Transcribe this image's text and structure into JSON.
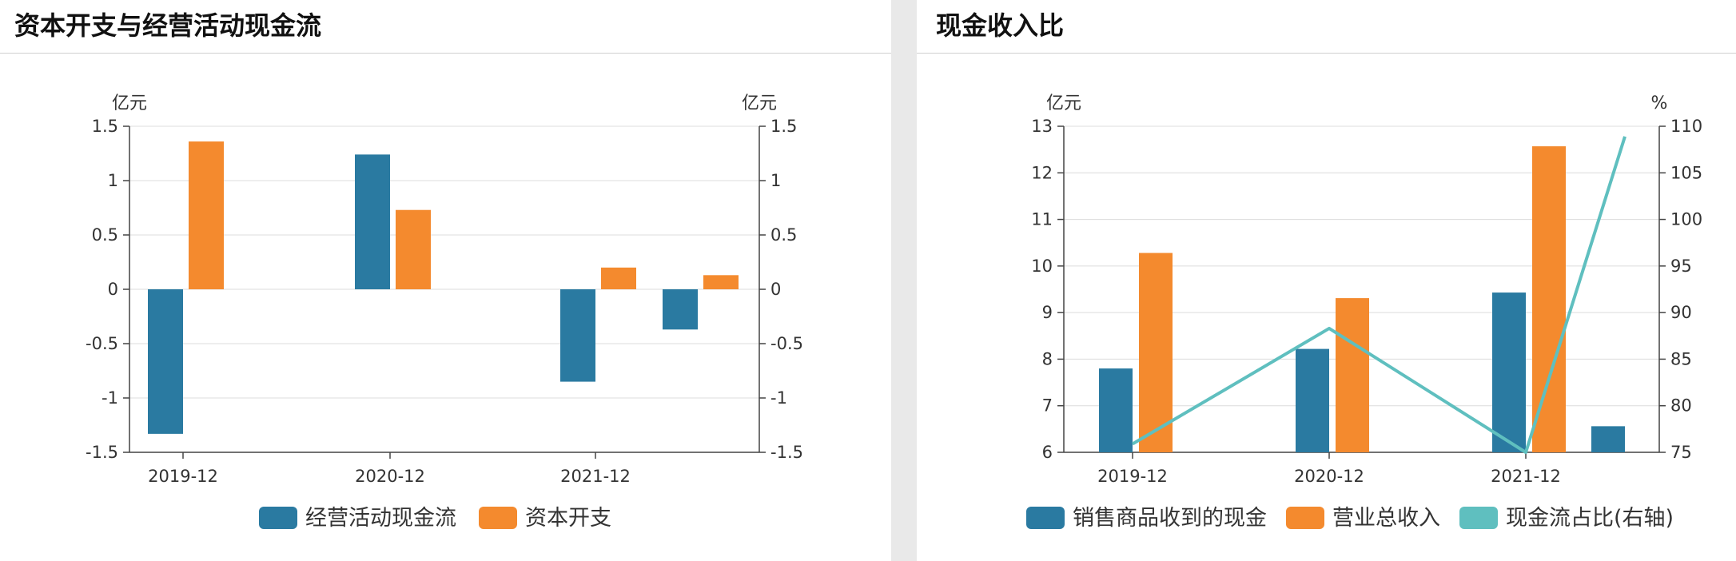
{
  "panels": {
    "left": {
      "title": "资本开支与经营活动现金流"
    },
    "right": {
      "title": "现金收入比"
    }
  },
  "chart_data": [
    {
      "type": "bar",
      "title": "资本开支与经营活动现金流",
      "categories": [
        "2019-12",
        "2020-12",
        "2021-12",
        ""
      ],
      "y_unit_left": "亿元",
      "y_unit_right": "亿元",
      "ylim": [
        -1.5,
        1.5
      ],
      "y_ticks": [
        1.5,
        1,
        0.5,
        0,
        -0.5,
        -1,
        -1.5
      ],
      "y_tick_labels": [
        "1.5",
        "1",
        "0.5",
        "0",
        "-0.5",
        "-1",
        "-1.5"
      ],
      "grid": true,
      "legend_position": "bottom",
      "series": [
        {
          "name": "经营活动现金流",
          "color": "#2a7aa1",
          "values": [
            -1.33,
            1.24,
            -0.85,
            -0.37
          ]
        },
        {
          "name": "资本开支",
          "color": "#f48a2e",
          "values": [
            1.36,
            0.73,
            0.2,
            0.13
          ]
        }
      ]
    },
    {
      "type": "bar",
      "title": "现金收入比",
      "categories": [
        "2019-12",
        "2020-12",
        "2021-12",
        ""
      ],
      "y_unit_left": "亿元",
      "y_unit_right": "%",
      "ylim": [
        6,
        13
      ],
      "ylim_right": [
        75,
        110
      ],
      "y_ticks": [
        13,
        12,
        11,
        10,
        9,
        8,
        7,
        6
      ],
      "y_tick_labels": [
        "13",
        "12",
        "11",
        "10",
        "9",
        "8",
        "7",
        "6"
      ],
      "y_ticks_right": [
        110,
        105,
        100,
        95,
        90,
        85,
        80,
        75
      ],
      "y_tick_labels_right": [
        "110",
        "105",
        "100",
        "95",
        "90",
        "85",
        "80",
        "75"
      ],
      "grid": true,
      "legend_position": "bottom",
      "series": [
        {
          "name": "销售商品收到的现金",
          "color": "#2a7aa1",
          "kind": "bar",
          "axis": "left",
          "values": [
            7.8,
            8.22,
            9.43,
            6.56
          ]
        },
        {
          "name": "营业总收入",
          "color": "#f48a2e",
          "kind": "bar",
          "axis": "left",
          "values": [
            10.28,
            9.31,
            12.57,
            6.0
          ]
        },
        {
          "name": "现金流占比(右轴)",
          "color": "#5fbfbf",
          "kind": "line",
          "axis": "right",
          "values": [
            75.9,
            88.3,
            75.0,
            108.9
          ]
        }
      ]
    }
  ]
}
